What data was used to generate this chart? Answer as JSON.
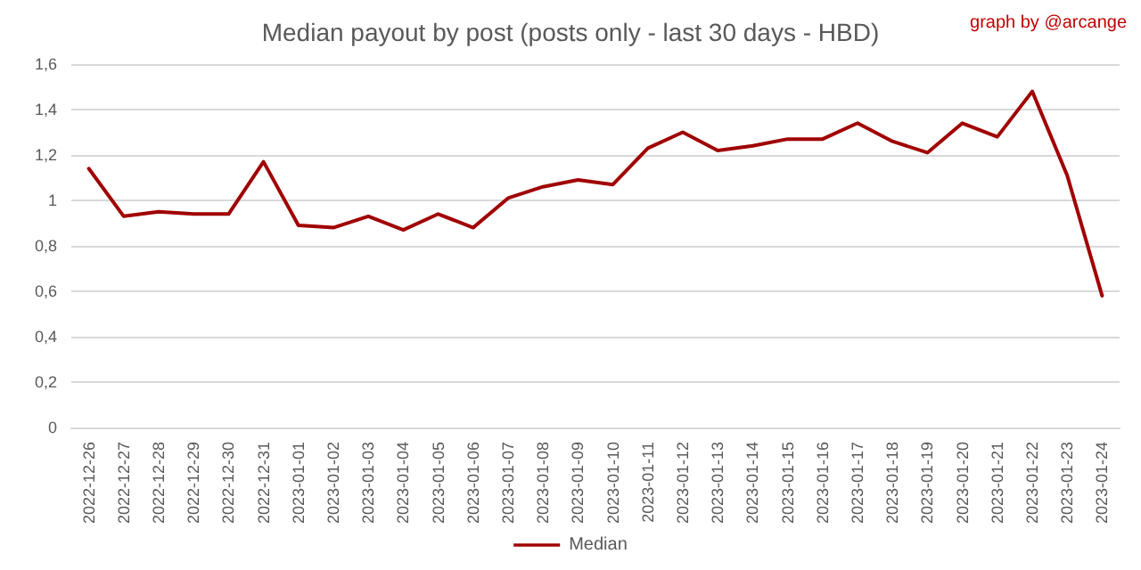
{
  "chart_data": {
    "type": "line",
    "title": "Median payout by post (posts only - last 30 days - HBD)",
    "annotations": [
      "graph by @arcange"
    ],
    "categories": [
      "2022-12-26",
      "2022-12-27",
      "2022-12-28",
      "2022-12-29",
      "2022-12-30",
      "2022-12-31",
      "2023-01-01",
      "2023-01-02",
      "2023-01-03",
      "2023-01-04",
      "2023-01-05",
      "2023-01-06",
      "2023-01-07",
      "2023-01-08",
      "2023-01-09",
      "2023-01-10",
      "2023-01-11",
      "2023-01-12",
      "2023-01-13",
      "2023-01-14",
      "2023-01-15",
      "2023-01-16",
      "2023-01-17",
      "2023-01-18",
      "2023-01-19",
      "2023-01-20",
      "2023-01-21",
      "2023-01-22",
      "2023-01-23",
      "2023-01-24"
    ],
    "series": [
      {
        "name": "Median",
        "color": "#a00000",
        "values": [
          1.14,
          0.93,
          0.95,
          0.94,
          0.94,
          1.17,
          0.89,
          0.88,
          0.93,
          0.87,
          0.94,
          0.88,
          1.01,
          1.06,
          1.09,
          1.07,
          1.23,
          1.3,
          1.22,
          1.24,
          1.27,
          1.27,
          1.34,
          1.26,
          1.21,
          1.34,
          1.28,
          1.48,
          1.11,
          0.58
        ]
      }
    ],
    "ylim": [
      0,
      1.6
    ],
    "yticks": [
      0,
      {
        "value": 0.2,
        "label": "0,2"
      },
      {
        "value": 0.4,
        "label": "0,4"
      },
      {
        "value": 0.6,
        "label": "0,6"
      },
      {
        "value": 0.8,
        "label": "0,8"
      },
      1,
      {
        "value": 1.2,
        "label": "1,2"
      },
      {
        "value": 1.4,
        "label": "1,4"
      },
      {
        "value": 1.6,
        "label": "1,6"
      }
    ],
    "grid": "y",
    "legend": "bottom",
    "marker": "none",
    "line_style": "solid"
  }
}
